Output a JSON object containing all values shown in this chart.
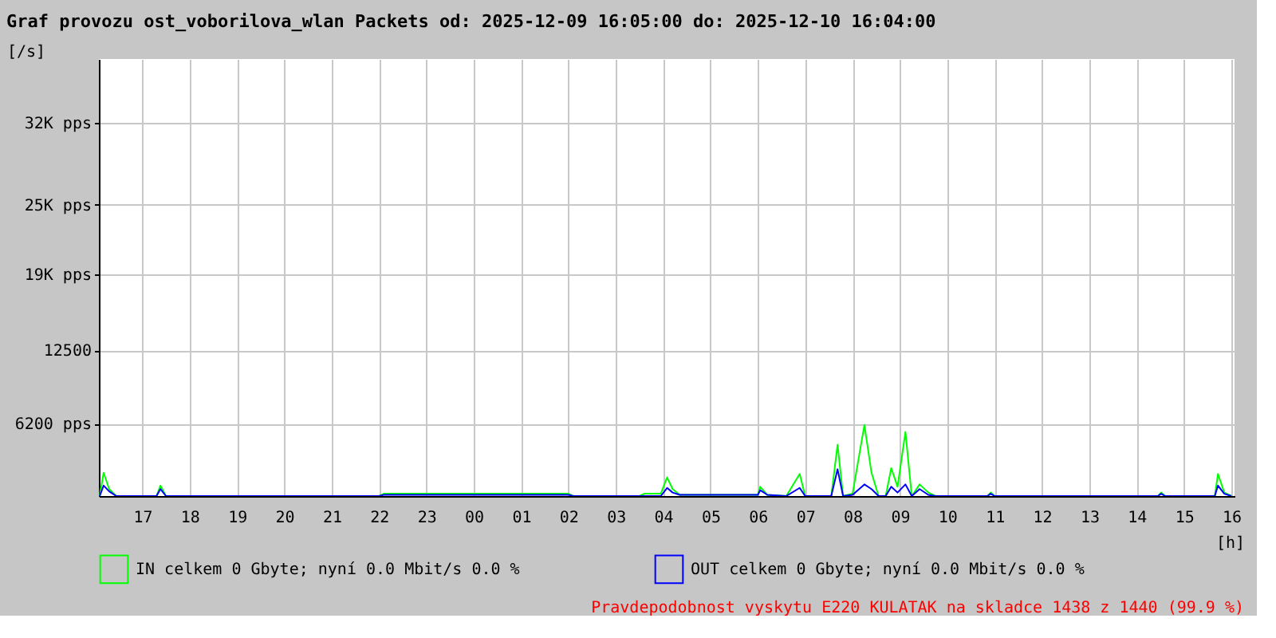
{
  "chart_data": {
    "type": "line",
    "title": "Graf provozu ost_voborilova_wlan Packets od: 2025-12-09 16:05:00 do: 2025-12-10 16:04:00",
    "ylabel": "[/s]",
    "xlabel": "[h]",
    "x": [
      "2025-12-09T16:06",
      "2025-12-09T16:11",
      "2025-12-09T16:18",
      "2025-12-09T16:27",
      "2025-12-09T17:18",
      "2025-12-09T17:23",
      "2025-12-09T17:30",
      "2025-12-09T22:00",
      "2025-12-09T22:06",
      "2025-12-10T02:00",
      "2025-12-10T02:06",
      "2025-12-10T03:30",
      "2025-12-10T03:36",
      "2025-12-10T03:57",
      "2025-12-10T04:05",
      "2025-12-10T04:12",
      "2025-12-10T04:21",
      "2025-12-10T06:00",
      "2025-12-10T06:03",
      "2025-12-10T06:12",
      "2025-12-10T06:36",
      "2025-12-10T06:53",
      "2025-12-10T07:00",
      "2025-12-10T07:33",
      "2025-12-10T07:41",
      "2025-12-10T07:48",
      "2025-12-10T08:00",
      "2025-12-10T08:15",
      "2025-12-10T08:24",
      "2025-12-10T08:33",
      "2025-12-10T08:42",
      "2025-12-10T08:49",
      "2025-12-10T08:57",
      "2025-12-10T09:07",
      "2025-12-10T09:15",
      "2025-12-10T09:25",
      "2025-12-10T09:36",
      "2025-12-10T09:45",
      "2025-12-10T10:51",
      "2025-12-10T10:55",
      "2025-12-10T11:00",
      "2025-12-10T14:27",
      "2025-12-10T14:31",
      "2025-12-10T14:36",
      "2025-12-10T15:39",
      "2025-12-10T15:43",
      "2025-12-10T15:51",
      "2025-12-10T16:00"
    ],
    "series": [
      {
        "name": "IN celkem 0 Gbyte; nyní   0.0 Mbit/s 0.0 %",
        "color": "#00ff00",
        "values": [
          0,
          2000,
          600,
          0,
          0,
          900,
          0,
          0,
          200,
          200,
          0,
          0,
          200,
          200,
          1600,
          600,
          100,
          100,
          800,
          100,
          0,
          1900,
          0,
          0,
          4400,
          0,
          200,
          6100,
          2000,
          0,
          0,
          2400,
          800,
          5500,
          0,
          1000,
          300,
          0,
          0,
          300,
          0,
          0,
          300,
          0,
          0,
          1900,
          300,
          0
        ]
      },
      {
        "name": "OUT celkem 0 Gbyte; nyní   0.0 Mbit/s 0.0 %",
        "color": "#0000ff",
        "values": [
          0,
          900,
          400,
          0,
          0,
          600,
          0,
          0,
          100,
          100,
          0,
          0,
          0,
          0,
          700,
          300,
          100,
          100,
          500,
          100,
          0,
          700,
          0,
          0,
          2300,
          0,
          100,
          1000,
          600,
          0,
          0,
          800,
          300,
          1000,
          0,
          600,
          100,
          0,
          0,
          200,
          0,
          0,
          200,
          0,
          0,
          900,
          200,
          0
        ]
      }
    ],
    "xlim": [
      "2025-12-09T16:05",
      "2025-12-10T16:04"
    ],
    "xticks": [
      {
        "value": "2025-12-09T17:00",
        "label": "17"
      },
      {
        "value": "2025-12-09T18:00",
        "label": "18"
      },
      {
        "value": "2025-12-09T19:00",
        "label": "19"
      },
      {
        "value": "2025-12-09T20:00",
        "label": "20"
      },
      {
        "value": "2025-12-09T21:00",
        "label": "21"
      },
      {
        "value": "2025-12-09T22:00",
        "label": "22"
      },
      {
        "value": "2025-12-09T23:00",
        "label": "23"
      },
      {
        "value": "2025-12-10T00:00",
        "label": "00"
      },
      {
        "value": "2025-12-10T01:00",
        "label": "01"
      },
      {
        "value": "2025-12-10T02:00",
        "label": "02"
      },
      {
        "value": "2025-12-10T03:00",
        "label": "03"
      },
      {
        "value": "2025-12-10T04:00",
        "label": "04"
      },
      {
        "value": "2025-12-10T05:00",
        "label": "05"
      },
      {
        "value": "2025-12-10T06:00",
        "label": "06"
      },
      {
        "value": "2025-12-10T07:00",
        "label": "07"
      },
      {
        "value": "2025-12-10T08:00",
        "label": "08"
      },
      {
        "value": "2025-12-10T09:00",
        "label": "09"
      },
      {
        "value": "2025-12-10T10:00",
        "label": "10"
      },
      {
        "value": "2025-12-10T11:00",
        "label": "11"
      },
      {
        "value": "2025-12-10T12:00",
        "label": "12"
      },
      {
        "value": "2025-12-10T13:00",
        "label": "13"
      },
      {
        "value": "2025-12-10T14:00",
        "label": "14"
      },
      {
        "value": "2025-12-10T15:00",
        "label": "15"
      },
      {
        "value": "2025-12-10T16:00",
        "label": "16"
      }
    ],
    "ylim": [
      0,
      37500
    ],
    "yticks": [
      {
        "value": 6200,
        "label": "6200 pps"
      },
      12500,
      {
        "value": 19000,
        "label": "19K pps"
      },
      {
        "value": 25000,
        "label": "25K pps"
      },
      {
        "value": 32000,
        "label": "32K pps"
      }
    ],
    "grid": true,
    "legend": "bottom",
    "marker": "none",
    "line_style": "solid",
    "annotations": [
      "Pravdepodobnost vyskytu E220 KULATAK na skladce 1438 z 1440 (99.9 %)"
    ]
  }
}
